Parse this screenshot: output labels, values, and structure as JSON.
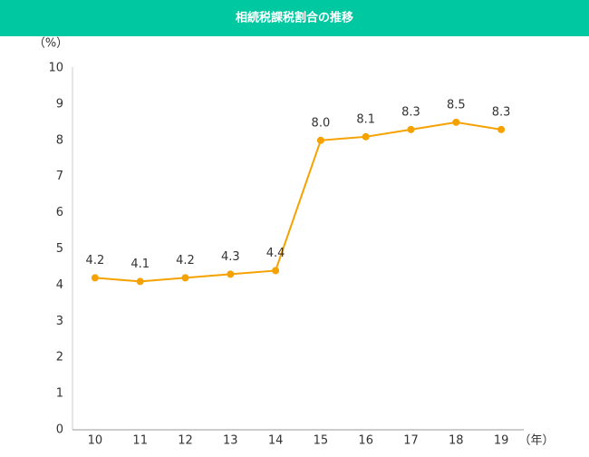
{
  "chart_data": {
    "type": "line",
    "title": "相続税課税割合の推移",
    "y_label": "（%）",
    "x_label": "（年）",
    "categories": [
      "10",
      "11",
      "12",
      "13",
      "14",
      "15",
      "16",
      "17",
      "18",
      "19"
    ],
    "series": [
      {
        "name": "相続税課税割合",
        "color": "#f5a200",
        "values": [
          4.2,
          4.1,
          4.2,
          4.3,
          4.4,
          8.0,
          8.1,
          8.3,
          8.5,
          8.3
        ],
        "value_labels": [
          "4.2",
          "4.1",
          "4.2",
          "4.3",
          "4.4",
          "8.0",
          "8.1",
          "8.3",
          "8.5",
          "8.3"
        ]
      }
    ],
    "ylim": [
      0,
      10
    ],
    "yticks": [
      0,
      1,
      2,
      3,
      4,
      5,
      6,
      7,
      8,
      9,
      10
    ],
    "grid": false
  }
}
